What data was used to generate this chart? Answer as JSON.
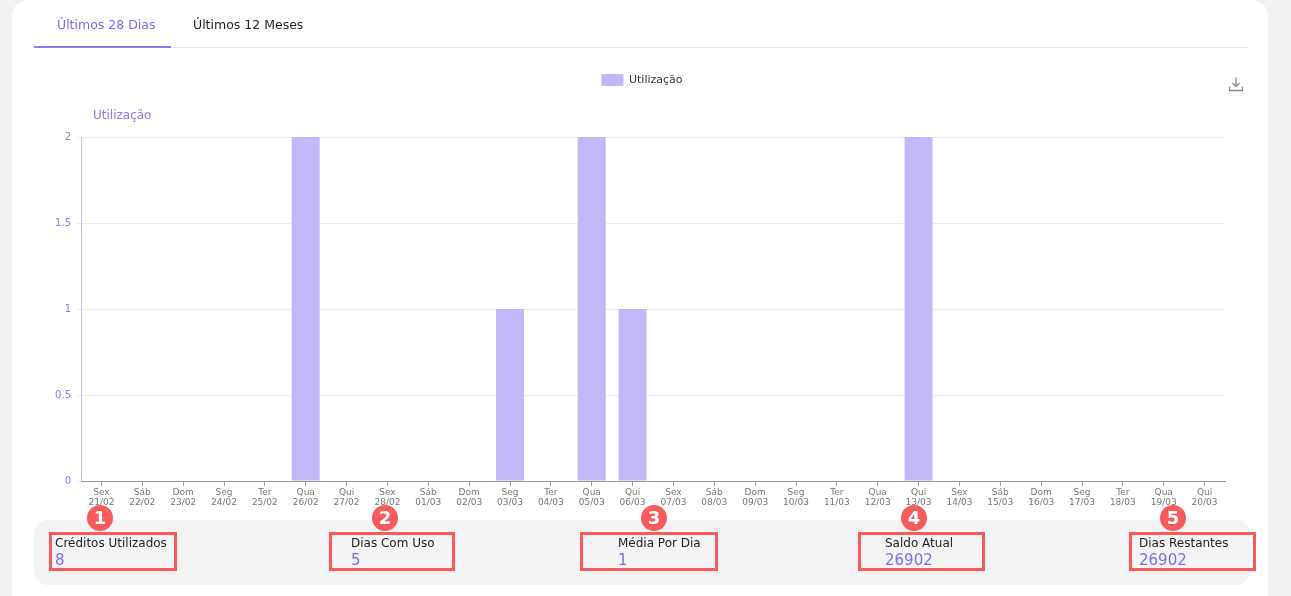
{
  "chart_data": {
    "type": "bar",
    "categories": [
      "Sex\n21/02",
      "Sáb\n22/02",
      "Dom\n23/02",
      "Seg\n24/02",
      "Ter\n25/02",
      "Qua\n26/02",
      "Qui\n27/02",
      "Sex\n28/02",
      "Sáb\n01/03",
      "Dom\n02/03",
      "Seg\n03/03",
      "Ter\n04/03",
      "Qua\n05/03",
      "Qui\n06/03",
      "Sex\n07/03",
      "Sáb\n08/03",
      "Dom\n09/03",
      "Seg\n10/03",
      "Ter\n11/03",
      "Qua\n12/03",
      "Qui\n13/03",
      "Sex\n14/03",
      "Sáb\n15/03",
      "Dom\n16/03",
      "Seg\n17/03",
      "Ter\n18/03",
      "Qua\n19/03",
      "Qui\n20/03"
    ],
    "series": [
      {
        "name": "Utilização",
        "color": "#c0b8f7",
        "values": [
          0,
          0,
          0,
          0,
          0,
          2,
          0,
          0,
          0,
          0,
          1,
          0,
          2,
          1,
          0,
          0,
          0,
          0,
          0,
          0,
          2,
          0,
          0,
          0,
          0,
          0,
          0,
          0
        ]
      }
    ],
    "ylabel": "Utilização",
    "ylim": [
      0,
      2
    ],
    "yticks": [
      0,
      0.5,
      1,
      1.5,
      2
    ],
    "grid": "y",
    "legend": "top",
    "annotations": [
      "Últimos 28 Dias",
      "Últimos 12 Meses",
      "Créditos Utilizados",
      "8",
      "Dias Com Uso",
      "5",
      "Média Por Dia",
      "1",
      "Saldo Atual",
      "26902",
      "Dias Restantes",
      "26902",
      "1",
      "2",
      "3",
      "4",
      "5"
    ]
  }
}
